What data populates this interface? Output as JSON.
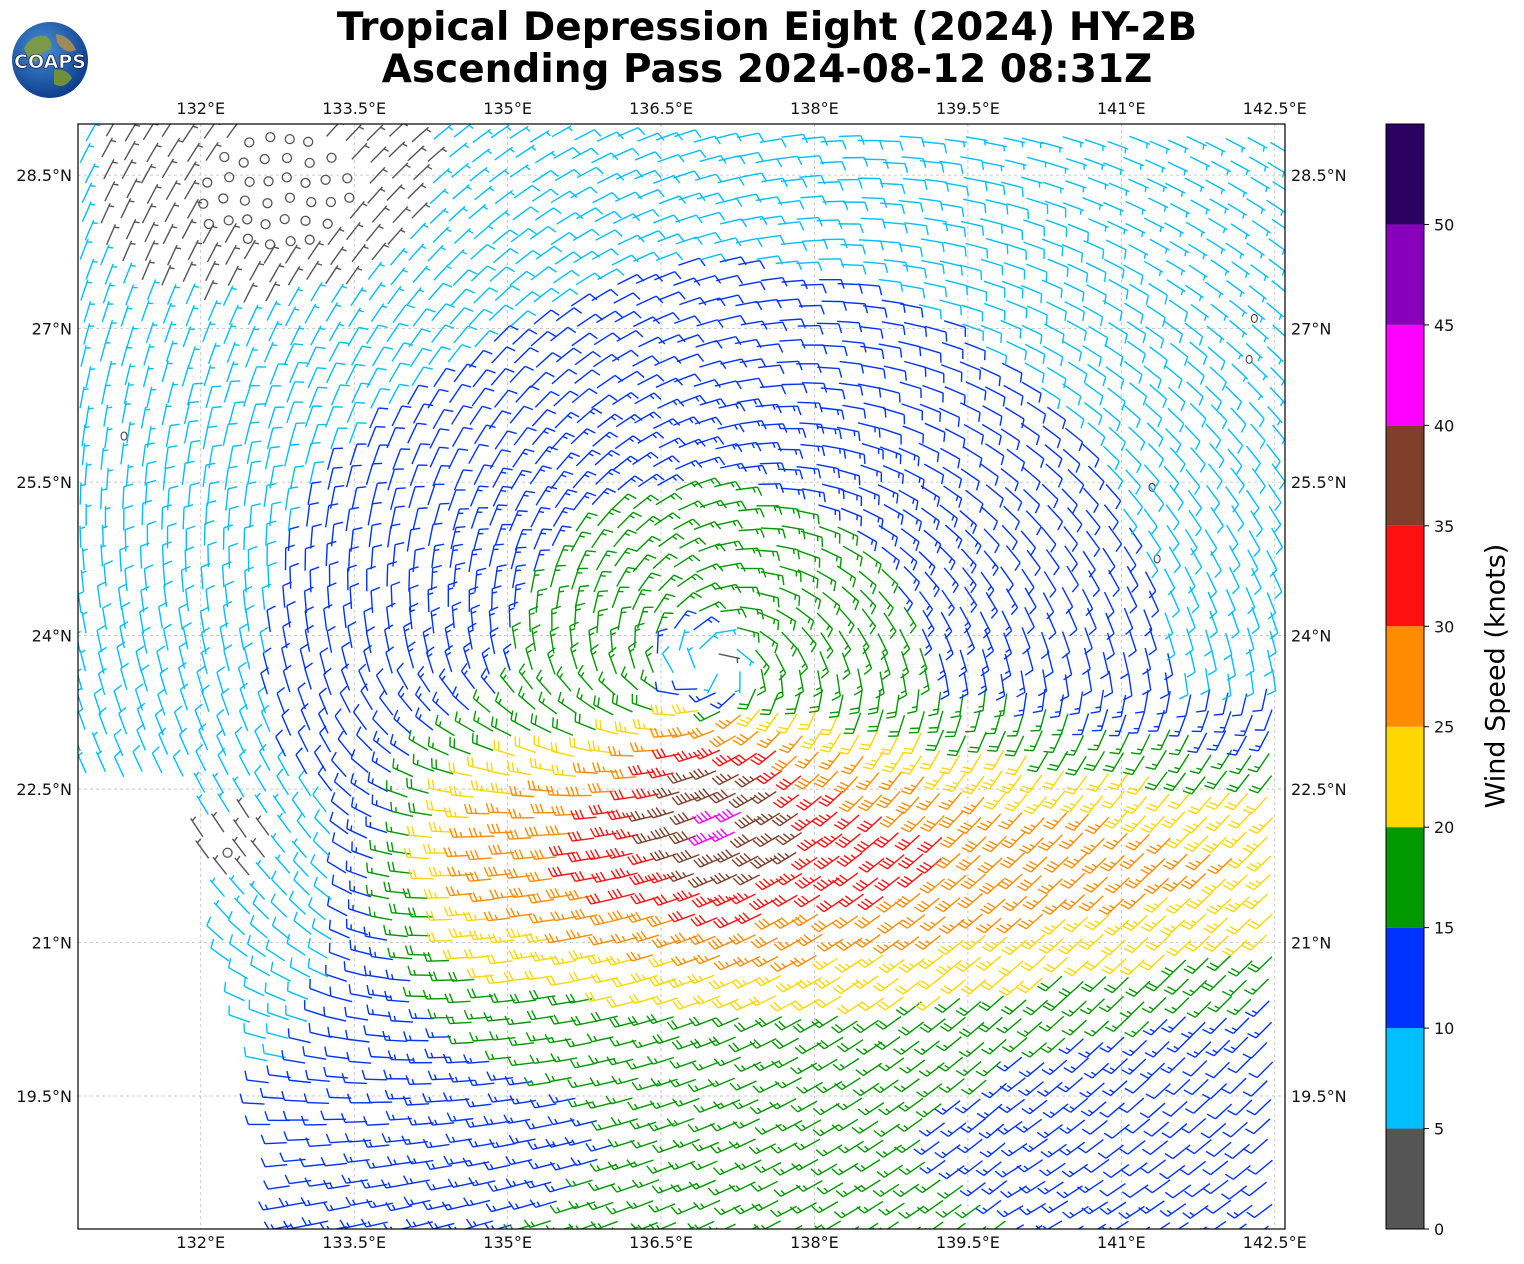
{
  "title": {
    "line1": "Tropical Depression Eight (2024) HY-2B",
    "line2": "Ascending Pass 2024-08-12 08:31Z"
  },
  "logo": {
    "text": "COAPS",
    "icon": "globe-logo-icon"
  },
  "map": {
    "lon_range": [
      130.8,
      142.6
    ],
    "lat_range": [
      18.2,
      29.0
    ],
    "grid": true,
    "lon_ticks": [
      "132°E",
      "133.5°E",
      "135°E",
      "136.5°E",
      "138°E",
      "139.5°E",
      "141°E",
      "142.5°E"
    ],
    "lon_tick_values": [
      132,
      133.5,
      135,
      136.5,
      138,
      139.5,
      141,
      142.5
    ],
    "lat_ticks": [
      "28.5°N",
      "27°N",
      "25.5°N",
      "24°N",
      "22.5°N",
      "21°N",
      "19.5°N"
    ],
    "lat_tick_values": [
      28.5,
      27,
      25.5,
      24,
      22.5,
      21,
      19.5
    ],
    "storm_center": {
      "lon": 137.0,
      "lat": 23.65
    },
    "islands": [
      {
        "lon": 131.25,
        "lat": 25.95
      },
      {
        "lon": 142.3,
        "lat": 27.1
      },
      {
        "lon": 142.25,
        "lat": 26.7
      },
      {
        "lon": 141.35,
        "lat": 24.75
      },
      {
        "lon": 141.3,
        "lat": 25.45
      }
    ]
  },
  "colorbar": {
    "label": "Wind Speed (knots)",
    "ticks": [
      "0",
      "5",
      "10",
      "15",
      "20",
      "25",
      "30",
      "35",
      "40",
      "45",
      "50"
    ],
    "bins": [
      {
        "min": 0,
        "max": 5,
        "color": "#555555"
      },
      {
        "min": 5,
        "max": 10,
        "color": "#00bfff"
      },
      {
        "min": 10,
        "max": 15,
        "color": "#0033ff"
      },
      {
        "min": 15,
        "max": 20,
        "color": "#009900"
      },
      {
        "min": 20,
        "max": 25,
        "color": "#ffd700"
      },
      {
        "min": 25,
        "max": 30,
        "color": "#ff8c00"
      },
      {
        "min": 30,
        "max": 35,
        "color": "#ff1111"
      },
      {
        "min": 35,
        "max": 40,
        "color": "#7f3f2a"
      },
      {
        "min": 40,
        "max": 45,
        "color": "#ff00ff"
      },
      {
        "min": 45,
        "max": 50,
        "color": "#8800bb"
      },
      {
        "min": 50,
        "max": 55,
        "color": "#2a0060"
      }
    ]
  }
}
